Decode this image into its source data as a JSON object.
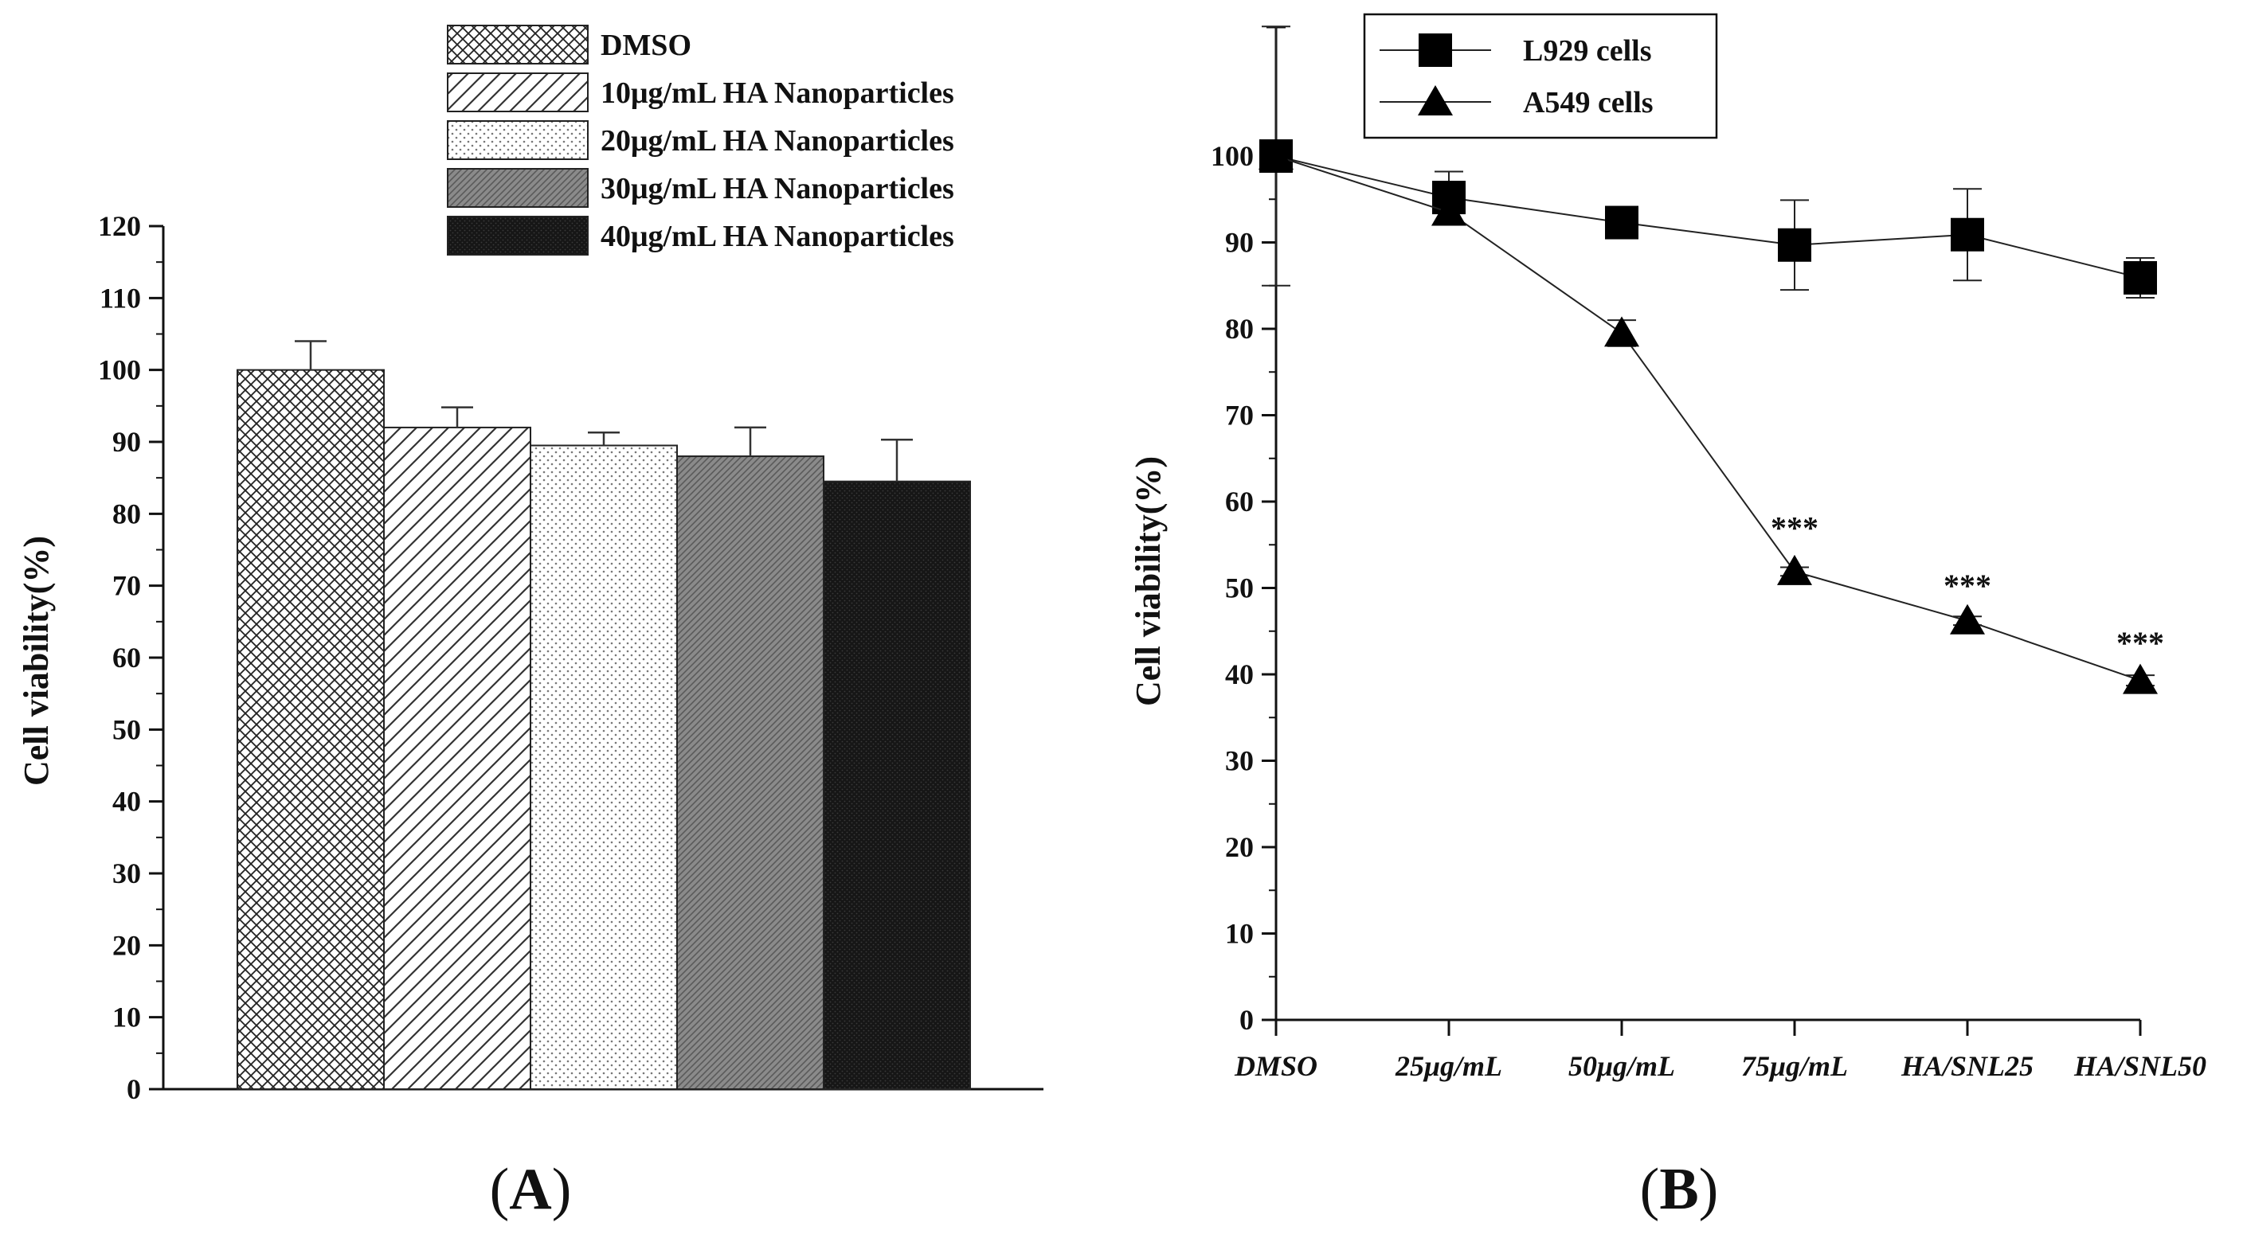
{
  "chart_data": [
    {
      "type": "bar",
      "panel_label": "A",
      "title": "",
      "xlabel": "",
      "ylabel": "Cell viability(%)",
      "ylim": [
        0,
        120
      ],
      "yticks": [
        0,
        10,
        20,
        30,
        40,
        50,
        60,
        70,
        80,
        90,
        100,
        110,
        120
      ],
      "legend_position": "top",
      "categories": [
        "DMSO",
        "10μg/mL HA Nanoparticles",
        "20μg/mL HA Nanoparticles",
        "30μg/mL HA Nanoparticles",
        "40μg/mL HA Nanoparticles"
      ],
      "values": [
        100,
        92,
        89.5,
        88,
        84.5
      ],
      "errors": [
        4,
        2.8,
        1.8,
        4,
        5.8
      ],
      "fills": [
        "crosshatch",
        "diagonal-wide",
        "dots-sparse",
        "diagonal-dark",
        "dots-dense"
      ]
    },
    {
      "type": "line",
      "panel_label": "B",
      "title": "",
      "xlabel": "",
      "ylabel": "Cell viability(%)",
      "ylim": [
        0,
        100
      ],
      "yticks": [
        0,
        10,
        20,
        30,
        40,
        50,
        60,
        70,
        80,
        90,
        100
      ],
      "legend_position": "top-left",
      "categories": [
        "DMSO",
        "25μg/mL",
        "50μg/mL",
        "75μg/mL",
        "HA/SNL25",
        "HA/SNL50"
      ],
      "series": [
        {
          "name": "L929 cells",
          "marker": "square",
          "values": [
            100,
            95.2,
            92.3,
            89.7,
            90.9,
            85.9
          ],
          "errors": [
            15,
            3,
            0,
            5.2,
            5.3,
            2.3
          ]
        },
        {
          "name": "A549 cells",
          "marker": "triangle",
          "values": [
            100,
            93.5,
            79.5,
            51.9,
            46.2,
            39.3
          ],
          "errors": [
            0,
            0,
            1.5,
            0.5,
            0.5,
            0.6
          ]
        }
      ],
      "annotations": [
        {
          "category_index": 3,
          "text": "***",
          "y": 57
        },
        {
          "category_index": 4,
          "text": "***",
          "y": 50.3
        },
        {
          "category_index": 5,
          "text": "***",
          "y": 43.7
        }
      ]
    }
  ],
  "panel_labels": {
    "a": "A",
    "b": "B"
  }
}
